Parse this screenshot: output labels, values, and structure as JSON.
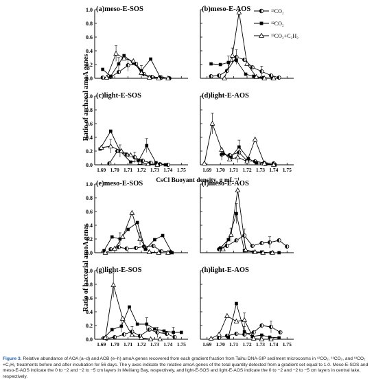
{
  "figure": {
    "y_label_top": "Ratio of archaeal amoA genes",
    "y_label_bottom": "Ratio of bacterial amoA genes",
    "x_label_middle": "CsCl Buoyant density, g mL⁻¹",
    "legend": [
      "¹³CO₂",
      "¹²CO₂",
      "¹³CO₂+C₂H₂"
    ]
  },
  "caption": {
    "label": "Figure 3.",
    "text": "Relative abundance of AOA (a–d) and AOB (e–h) amoA genes recovered from each gradient fraction from Taihu DNA-SIP sediment microcosms in ¹²CO₂, ¹³CO₂, and ¹³CO₂ +C₂H₂ treatments before and after incubation for 56 days. The y axes indicate the relative amoA genes of the total quantity detected from a gradient set equal to 1.0. Meso-E-SOS and meso-E-AOS indicate the 0 to −2 and −2 to −5 cm layers in Meiliang Bay, respectively, and light-E-SOS and light-E-AOS indicate the 0 to −2 and −2 to −5 cm layers in central lake, respectively."
  },
  "chart_data": [
    {
      "panel": "(a)meso-E-SOS",
      "type": "line",
      "xlim": [
        1.685,
        1.755
      ],
      "ylim": [
        0,
        1.0
      ],
      "yticks": [
        "0.0",
        "0.2",
        "0.4",
        "0.6",
        "0.8",
        "1.0"
      ],
      "xticks": [],
      "series": [
        {
          "name": "¹³CO₂",
          "marker": "circle-half",
          "x": [
            1.691,
            1.697,
            1.703,
            1.71,
            1.716,
            1.722,
            1.728,
            1.735,
            1.741
          ],
          "y": [
            0.01,
            0.02,
            0.09,
            0.19,
            0.21,
            0.06,
            0.02,
            0.01,
            0.0
          ]
        },
        {
          "name": "¹²CO₂",
          "marker": "square",
          "x": [
            1.691,
            1.697,
            1.703,
            1.707,
            1.714,
            1.72,
            1.727,
            1.734,
            1.741
          ],
          "y": [
            0.13,
            0.03,
            0.21,
            0.33,
            0.22,
            0.11,
            0.28,
            0.02,
            0.0
          ]
        },
        {
          "name": "¹³CO₂+C₂H₂",
          "marker": "triangle",
          "x": [
            1.694,
            1.701,
            1.707,
            1.714,
            1.72,
            1.726,
            1.733,
            1.74
          ],
          "y": [
            0.01,
            0.36,
            0.29,
            0.25,
            0.08,
            0.01,
            0.0,
            0.0
          ]
        }
      ]
    },
    {
      "panel": "(b)meso-E-AOS",
      "type": "line",
      "xlim": [
        1.685,
        1.755
      ],
      "ylim": [
        0,
        1.0
      ],
      "yticks": [],
      "xticks": [],
      "series": [
        {
          "name": "¹³CO₂",
          "marker": "circle-half",
          "x": [
            1.693,
            1.699,
            1.705,
            1.712,
            1.718,
            1.724,
            1.731,
            1.738,
            1.744
          ],
          "y": [
            0.03,
            0.04,
            0.11,
            0.31,
            0.27,
            0.16,
            0.1,
            0.04,
            0.01
          ]
        },
        {
          "name": "¹²CO₂",
          "marker": "square",
          "x": [
            1.693,
            1.7,
            1.706,
            1.712,
            1.719,
            1.725,
            1.732,
            1.739
          ],
          "y": [
            0.21,
            0.2,
            0.23,
            0.26,
            0.06,
            0.03,
            0.01,
            0.0
          ]
        },
        {
          "name": "¹³CO₂+C₂H₂",
          "marker": "triangle",
          "x": [
            1.703,
            1.709,
            1.714,
            1.72,
            1.727,
            1.733,
            1.74
          ],
          "y": [
            0.0,
            0.33,
            0.96,
            0.21,
            0.02,
            0.0,
            0.0
          ]
        }
      ]
    },
    {
      "panel": "(c)light-E-SOS",
      "type": "line",
      "xlim": [
        1.685,
        1.755
      ],
      "ylim": [
        0,
        1.0
      ],
      "yticks": [
        "0.0",
        "0.2",
        "0.4",
        "0.6",
        "0.8",
        "1.0"
      ],
      "xticks": [
        "1.69",
        "1.70",
        "1.71",
        "1.72",
        "1.73",
        "1.74",
        "1.75"
      ],
      "series": [
        {
          "name": "¹³CO₂",
          "marker": "circle-half",
          "x": [
            1.696,
            1.702,
            1.709,
            1.715,
            1.721,
            1.727,
            1.734,
            1.74
          ],
          "y": [
            0.02,
            0.2,
            0.15,
            0.11,
            0.06,
            0.03,
            0.01,
            0.0
          ]
        },
        {
          "name": "¹²CO₂",
          "marker": "square",
          "x": [
            1.689,
            1.697,
            1.704,
            1.712,
            1.718,
            1.724,
            1.731,
            1.738
          ],
          "y": [
            0.23,
            0.49,
            0.2,
            0.04,
            0.06,
            0.28,
            0.03,
            0.0
          ]
        },
        {
          "name": "¹³CO₂+C₂H₂",
          "marker": "triangle",
          "x": [
            1.69,
            1.697,
            1.705,
            1.712,
            1.719,
            1.725,
            1.732
          ],
          "y": [
            0.25,
            0.27,
            0.2,
            0.14,
            0.03,
            0.01,
            0.0
          ]
        }
      ]
    },
    {
      "panel": "(d)light-E-AOS",
      "type": "line",
      "xlim": [
        1.685,
        1.755
      ],
      "ylim": [
        0,
        1.0
      ],
      "yticks": [],
      "xticks": [
        "1.69",
        "1.70",
        "1.71",
        "1.72",
        "1.73",
        "1.74",
        "1.75"
      ],
      "series": [
        {
          "name": "¹³CO₂",
          "marker": "circle-half",
          "x": [
            1.701,
            1.707,
            1.714,
            1.72,
            1.726,
            1.733,
            1.74
          ],
          "y": [
            0.15,
            0.14,
            0.18,
            0.06,
            0.05,
            0.03,
            0.02
          ]
        },
        {
          "name": "¹²CO₂",
          "marker": "square",
          "x": [
            1.702,
            1.708,
            1.714,
            1.721,
            1.727,
            1.734,
            1.741
          ],
          "y": [
            0.16,
            0.11,
            0.26,
            0.09,
            0.03,
            0.01,
            0.0
          ]
        },
        {
          "name": "¹³CO₂+C₂H₂",
          "marker": "triangle",
          "x": [
            1.688,
            1.694,
            1.701,
            1.707,
            1.713,
            1.72,
            1.726,
            1.733,
            1.74
          ],
          "y": [
            0.02,
            0.6,
            0.22,
            0.08,
            0.11,
            0.05,
            0.37,
            0.02,
            0.0
          ]
        }
      ]
    },
    {
      "panel": "(e)meso-E-SOS",
      "type": "line",
      "xlim": [
        1.685,
        1.755
      ],
      "ylim": [
        0,
        1.0
      ],
      "yticks": [
        "0.0",
        "0.2",
        "0.4",
        "0.6",
        "0.8",
        "1.0"
      ],
      "xticks": [],
      "series": [
        {
          "name": "¹³CO₂",
          "marker": "circle-half",
          "x": [
            1.697,
            1.703,
            1.709,
            1.716,
            1.722,
            1.729,
            1.735,
            1.742
          ],
          "y": [
            0.05,
            0.08,
            0.06,
            0.07,
            0.09,
            0.1,
            0.02,
            0.01
          ]
        },
        {
          "name": "¹²CO₂",
          "marker": "square",
          "x": [
            1.692,
            1.698,
            1.704,
            1.71,
            1.717,
            1.723,
            1.73,
            1.736,
            1.743
          ],
          "y": [
            0.03,
            0.23,
            0.2,
            0.34,
            0.44,
            0.05,
            0.19,
            0.25,
            0.0
          ]
        },
        {
          "name": "¹³CO₂+C₂H₂",
          "marker": "triangle",
          "x": [
            1.693,
            1.7,
            1.706,
            1.713,
            1.719,
            1.726,
            1.733,
            1.74
          ],
          "y": [
            0.0,
            0.06,
            0.23,
            0.58,
            0.2,
            0.01,
            0.0,
            0.0
          ]
        }
      ]
    },
    {
      "panel": "(f)meso-E-AOS",
      "type": "line",
      "xlim": [
        1.685,
        1.755
      ],
      "ylim": [
        0,
        1.0
      ],
      "yticks": [],
      "xticks": [],
      "series": [
        {
          "name": "¹³CO₂",
          "marker": "circle-half",
          "x": [
            1.699,
            1.705,
            1.712,
            1.718,
            1.724,
            1.731,
            1.737,
            1.744,
            1.75
          ],
          "y": [
            0.05,
            0.1,
            0.18,
            0.25,
            0.1,
            0.14,
            0.15,
            0.18,
            0.09
          ]
        },
        {
          "name": "¹²CO₂",
          "marker": "square",
          "x": [
            1.7,
            1.706,
            1.712,
            1.718,
            1.725,
            1.731,
            1.738,
            1.744
          ],
          "y": [
            0.07,
            0.19,
            0.57,
            0.03,
            0.01,
            0.01,
            0.0,
            0.0
          ]
        },
        {
          "name": "¹³CO₂+C₂H₂",
          "marker": "triangle",
          "x": [
            1.702,
            1.708,
            1.713,
            1.719,
            1.726,
            1.732,
            1.739
          ],
          "y": [
            0.05,
            0.26,
            0.91,
            0.04,
            0.01,
            0.0,
            0.0
          ]
        }
      ]
    },
    {
      "panel": "(g)light-E-SOS",
      "type": "line",
      "xlim": [
        1.685,
        1.755
      ],
      "ylim": [
        0,
        1.0
      ],
      "yticks": [
        "0.0",
        "0.2",
        "0.4",
        "0.6",
        "0.8",
        "1.0"
      ],
      "xticks": [
        "1.69",
        "1.70",
        "1.71",
        "1.72",
        "1.73",
        "1.74",
        "1.75"
      ],
      "series": [
        {
          "name": "¹³CO₂",
          "marker": "circle-half",
          "x": [
            1.694,
            1.7,
            1.707,
            1.713,
            1.719,
            1.726,
            1.732,
            1.739,
            1.745
          ],
          "y": [
            0.01,
            0.03,
            0.07,
            0.11,
            0.05,
            0.14,
            0.1,
            0.08,
            0.03
          ]
        },
        {
          "name": "¹²CO₂",
          "marker": "square",
          "x": [
            1.692,
            1.698,
            1.705,
            1.711,
            1.717,
            1.724,
            1.73,
            1.737,
            1.744,
            1.75
          ],
          "y": [
            0.02,
            0.14,
            0.19,
            0.47,
            0.22,
            0.22,
            0.15,
            0.12,
            0.1,
            0.1
          ]
        },
        {
          "name": "¹³CO₂+C₂H₂",
          "marker": "triangle",
          "x": [
            1.693,
            1.699,
            1.706,
            1.713,
            1.72,
            1.727,
            1.734
          ],
          "y": [
            0.02,
            0.79,
            0.3,
            0.06,
            0.02,
            0.0,
            0.0
          ]
        }
      ]
    },
    {
      "panel": "(h)light-E-AOS",
      "type": "line",
      "xlim": [
        1.685,
        1.755
      ],
      "ylim": [
        0,
        1.0
      ],
      "yticks": [],
      "xticks": [
        "1.69",
        "1.70",
        "1.71",
        "1.72",
        "1.73",
        "1.74",
        "1.75"
      ],
      "series": [
        {
          "name": "¹³CO₂",
          "marker": "circle-half",
          "x": [
            1.699,
            1.705,
            1.712,
            1.718,
            1.725,
            1.731,
            1.738,
            1.745
          ],
          "y": [
            0.02,
            0.05,
            0.08,
            0.07,
            0.1,
            0.2,
            0.18,
            0.1
          ]
        },
        {
          "name": "¹²CO₂",
          "marker": "square",
          "x": [
            1.706,
            1.712,
            1.718,
            1.724,
            1.731,
            1.737,
            1.744
          ],
          "y": [
            0.03,
            0.52,
            0.11,
            0.04,
            0.06,
            0.03,
            0.02
          ]
        },
        {
          "name": "¹³CO₂+C₂H₂",
          "marker": "triangle",
          "x": [
            1.693,
            1.699,
            1.705,
            1.712,
            1.718,
            1.725,
            1.731,
            1.738
          ],
          "y": [
            0.01,
            0.07,
            0.34,
            0.26,
            0.28,
            0.01,
            0.0,
            0.0
          ]
        }
      ]
    }
  ]
}
